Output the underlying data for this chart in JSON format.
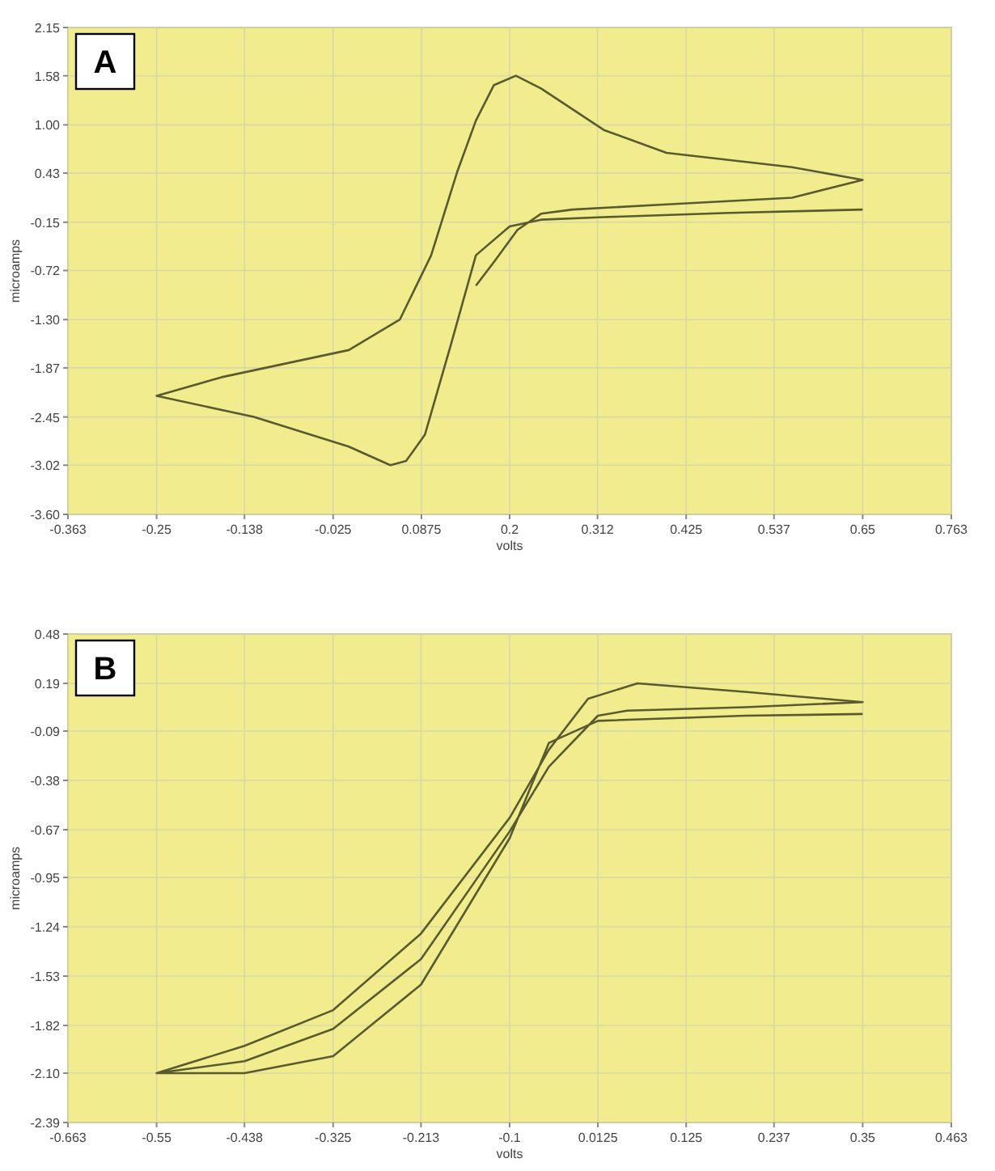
{
  "chart_data": [
    {
      "type": "line",
      "xlabel": "volts",
      "ylabel": "microamps",
      "annotations": [
        "A"
      ],
      "grid": true,
      "marker": "none",
      "line_style": "solid",
      "xlim": [
        -0.363,
        0.763
      ],
      "xticks": [
        -0.363,
        -0.25,
        -0.138,
        -0.025,
        0.0875,
        0.2,
        0.312,
        0.425,
        0.537,
        0.65,
        0.763
      ],
      "ylim": [
        -3.6,
        2.15
      ],
      "yticks": [
        {
          "value": -3.6,
          "label": "-3.60"
        },
        -3.02,
        -2.45,
        -1.87,
        {
          "value": -1.3,
          "label": "-1.30"
        },
        -0.72,
        -0.15,
        0.43,
        {
          "value": 1,
          "label": "1.00"
        },
        1.58,
        2.15
      ],
      "series": [
        {
          "color": "#5a5a2e",
          "x": [
            0.65,
            0.48,
            0.32,
            0.24,
            0.2,
            0.157,
            0.125,
            0.092,
            0.068,
            0.048,
            -0.005,
            -0.126,
            -0.25,
            -0.167,
            -0.005,
            0.06,
            0.1,
            0.133,
            0.157,
            0.18,
            0.208,
            0.24,
            0.32,
            0.4,
            0.56,
            0.65,
            0.56,
            0.4,
            0.28,
            0.24,
            0.21,
            0.18,
            0.157
          ],
          "values": [
            0.0,
            -0.04,
            -0.09,
            -0.12,
            -0.2,
            -0.54,
            -1.6,
            -2.66,
            -2.97,
            -3.02,
            -2.8,
            -2.45,
            -2.2,
            -1.98,
            -1.66,
            -1.3,
            -0.54,
            0.44,
            1.05,
            1.47,
            1.58,
            1.43,
            0.94,
            0.67,
            0.5,
            0.35,
            0.14,
            0.06,
            0.0,
            -0.05,
            -0.24,
            -0.62,
            -0.9
          ]
        }
      ]
    },
    {
      "type": "line",
      "xlabel": "volts",
      "ylabel": "microamps",
      "annotations": [
        "B"
      ],
      "grid": true,
      "marker": "none",
      "line_style": "solid",
      "xlim": [
        -0.663,
        0.463
      ],
      "xticks": [
        -0.663,
        -0.55,
        -0.438,
        -0.325,
        -0.213,
        -0.1,
        0.0125,
        0.125,
        0.237,
        0.35,
        0.463
      ],
      "ylim": [
        -2.39,
        0.48
      ],
      "yticks": [
        -2.39,
        {
          "value": -2.1,
          "label": "-2.10"
        },
        -1.82,
        -1.53,
        -1.24,
        -0.95,
        -0.67,
        -0.38,
        -0.09,
        0.19,
        0.48
      ],
      "series": [
        {
          "color": "#5a5a2e",
          "x": [
            0.35,
            0.2,
            0.0125,
            -0.05,
            -0.1,
            -0.213,
            -0.325,
            -0.438,
            -0.55,
            -0.438,
            -0.325,
            -0.213,
            -0.1,
            -0.05,
            0.0,
            0.063,
            0.2,
            0.35,
            0.2,
            0.05,
            0.0125,
            -0.05,
            -0.1,
            -0.213,
            -0.325,
            -0.438,
            -0.55
          ],
          "values": [
            0.01,
            0.0,
            -0.03,
            -0.16,
            -0.72,
            -1.58,
            -2.0,
            -2.1,
            -2.1,
            -1.94,
            -1.73,
            -1.28,
            -0.6,
            -0.2,
            0.1,
            0.19,
            0.14,
            0.08,
            0.05,
            0.03,
            0.0,
            -0.3,
            -0.68,
            -1.43,
            -1.84,
            -2.03,
            -2.1
          ]
        }
      ]
    }
  ]
}
